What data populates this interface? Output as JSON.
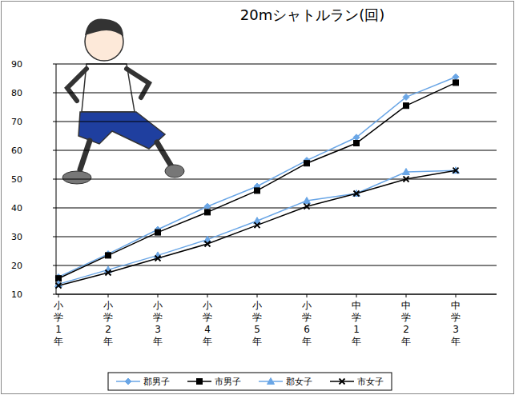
{
  "chart_data": {
    "type": "line",
    "title": "20mシャトルラン(回)",
    "categories": [
      "小学1年",
      "小学2年",
      "小学3年",
      "小学4年",
      "小学5年",
      "小学6年",
      "中学1年",
      "中学2年",
      "中学3年"
    ],
    "series": [
      {
        "name": "郡男子",
        "color": "#6aa6e6",
        "marker": "diamond",
        "values": [
          16,
          24,
          32.5,
          40.5,
          47.5,
          56.5,
          64.5,
          78.5,
          85.5
        ]
      },
      {
        "name": "市男子",
        "color": "#000000",
        "marker": "square",
        "values": [
          15.5,
          23.5,
          31.5,
          38.5,
          46,
          55.5,
          62.5,
          75.5,
          83.5
        ]
      },
      {
        "name": "郡女子",
        "color": "#6aa6e6",
        "marker": "triangle",
        "values": [
          13.5,
          18.5,
          23.5,
          29,
          35.5,
          42.5,
          45,
          52.5,
          53
        ]
      },
      {
        "name": "市女子",
        "color": "#000000",
        "marker": "x",
        "values": [
          13,
          17.5,
          22.5,
          27.5,
          34,
          40.5,
          45,
          50,
          53
        ]
      }
    ],
    "ylim": [
      10,
      90
    ],
    "yticks": [
      10,
      20,
      30,
      40,
      50,
      60,
      70,
      80,
      90
    ],
    "grid": true,
    "legend": "bottom"
  }
}
